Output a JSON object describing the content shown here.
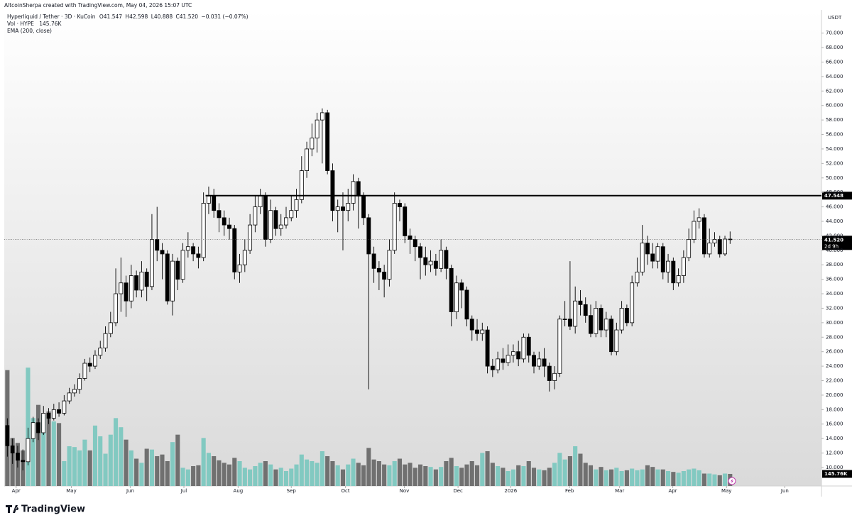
{
  "header": {
    "credit": "AltcoinSherpa created with TradingView.com, May 04, 2026 15:07 UTC"
  },
  "chart_data": {
    "type": "candlestick",
    "symbol": "Hyperliquid / Tether · 3D · KuCoin",
    "legend": {
      "o": "O",
      "h": "H",
      "l": "L",
      "c": "C",
      "change": "−0.031 (−0.07%)",
      "volume_title": "Vol · HYPE",
      "ema": "EMA (200, close)"
    },
    "currency": "USDT",
    "open": [
      15.8,
      13.0,
      12.0,
      11.0,
      10.8,
      14.0,
      16.2,
      14.8,
      17.5,
      16.8,
      18.0,
      17.5,
      19.2,
      20.3,
      20.8,
      22.3,
      24.4,
      24.0,
      25.5,
      26.5,
      28.5,
      30.0,
      34.0,
      35.5,
      33.0,
      36.5,
      34.5,
      37.0,
      35.0,
      41.5,
      40.0,
      39.5,
      33.0,
      38.5,
      36.0,
      40.0,
      40.5,
      39.5,
      39.0,
      46.5,
      47.5,
      45.5,
      44.5,
      43.5,
      43.0,
      37.0,
      38.0,
      40.0,
      43.5,
      46.0,
      47.5,
      41.5,
      45.5,
      43.0,
      43.5,
      44.5,
      45.5,
      47.0,
      51.0,
      54.0,
      55.5,
      58.0,
      59.0,
      51.0,
      45.5,
      46.0,
      45.5,
      46.5,
      49.5,
      47.5,
      44.5,
      39.5,
      37.5,
      37.0,
      36.0,
      40.0,
      46.5,
      46.0,
      42.0,
      41.5,
      40.5,
      39.0,
      38.0,
      38.5,
      37.5,
      40.0,
      37.5,
      31.5,
      35.5,
      34.5,
      30.5,
      29.0,
      28.5,
      29.0,
      24.0,
      23.5,
      25.0,
      24.5,
      25.5,
      26.0,
      25.0,
      28.0,
      25.5,
      24.0,
      25.0,
      24.0,
      22.0,
      23.0,
      30.5,
      30.5,
      29.5,
      33.0,
      32.5,
      31.0,
      28.5,
      32.0,
      29.0,
      30.5,
      26.0,
      29.0,
      32.0,
      30.0,
      35.5,
      37.0,
      41.0,
      39.5,
      38.5,
      40.5,
      37.0,
      38.5,
      35.5,
      36.5,
      39.0,
      41.5,
      44.0,
      44.5,
      39.5,
      41.0,
      41.5,
      39.5,
      41.547
    ],
    "high": [
      16.8,
      14.0,
      13.0,
      12.5,
      15.5,
      17.0,
      16.8,
      18.5,
      18.2,
      18.8,
      19.0,
      20.0,
      21.0,
      21.5,
      23.0,
      25.0,
      25.2,
      26.2,
      27.5,
      29.5,
      31.5,
      37.5,
      39.0,
      36.5,
      38.0,
      37.2,
      38.5,
      37.5,
      45.0,
      46.0,
      41.0,
      40.0,
      39.5,
      39.0,
      41.0,
      42.5,
      41.0,
      40.5,
      48.0,
      48.8,
      48.5,
      46.5,
      45.5,
      44.5,
      43.5,
      39.5,
      41.5,
      45.0,
      47.5,
      48.5,
      48.0,
      47.0,
      46.0,
      45.0,
      46.0,
      47.5,
      48.5,
      53.0,
      55.0,
      57.5,
      59.0,
      59.6,
      59.4,
      52.0,
      47.0,
      48.0,
      48.5,
      50.5,
      50.0,
      48.0,
      45.0,
      40.5,
      38.5,
      38.0,
      41.5,
      48.0,
      47.0,
      46.5,
      43.0,
      42.0,
      41.0,
      40.5,
      40.0,
      39.5,
      41.5,
      40.5,
      38.0,
      36.5,
      36.0,
      35.0,
      31.0,
      30.5,
      30.0,
      29.5,
      25.0,
      26.0,
      26.5,
      27.0,
      27.0,
      27.5,
      28.5,
      28.5,
      26.0,
      26.0,
      26.5,
      24.5,
      24.0,
      31.0,
      33.0,
      38.5,
      35.0,
      34.5,
      33.5,
      32.5,
      33.0,
      32.5,
      31.5,
      31.0,
      30.0,
      33.0,
      32.5,
      36.5,
      39.0,
      43.5,
      42.0,
      41.0,
      41.0,
      41.0,
      39.5,
      39.0,
      37.5,
      40.0,
      43.0,
      45.5,
      45.8,
      45.0,
      43.0,
      42.5,
      42.0,
      42.0,
      42.598
    ],
    "low": [
      11.5,
      10.5,
      10.0,
      9.6,
      10.3,
      13.5,
      13.8,
      14.5,
      16.0,
      16.5,
      17.0,
      17.2,
      18.8,
      19.8,
      20.2,
      22.0,
      23.2,
      23.6,
      25.0,
      26.0,
      28.0,
      29.5,
      31.5,
      30.8,
      32.0,
      33.5,
      33.5,
      33.0,
      34.5,
      38.5,
      36.0,
      32.5,
      31.0,
      34.5,
      35.5,
      39.0,
      38.5,
      37.5,
      38.5,
      45.0,
      44.5,
      42.5,
      42.0,
      41.5,
      36.0,
      35.5,
      37.0,
      39.5,
      42.5,
      45.0,
      40.5,
      41.0,
      42.0,
      42.0,
      43.0,
      44.0,
      44.5,
      46.5,
      50.0,
      53.0,
      53.5,
      52.0,
      50.5,
      44.0,
      42.5,
      40.0,
      44.0,
      45.5,
      43.0,
      43.5,
      20.8,
      35.5,
      34.5,
      33.5,
      35.0,
      39.5,
      44.0,
      41.0,
      39.5,
      38.5,
      36.0,
      36.5,
      37.0,
      36.5,
      37.0,
      36.0,
      29.5,
      30.5,
      32.0,
      29.5,
      27.5,
      27.5,
      27.5,
      23.0,
      22.5,
      23.0,
      23.5,
      24.0,
      24.5,
      24.0,
      24.5,
      24.5,
      23.0,
      23.5,
      22.5,
      20.5,
      20.8,
      22.5,
      29.5,
      29.0,
      28.5,
      31.0,
      30.0,
      28.0,
      28.0,
      28.0,
      28.0,
      25.5,
      25.5,
      28.5,
      29.5,
      29.5,
      35.0,
      36.5,
      38.0,
      37.5,
      37.5,
      36.0,
      35.5,
      34.5,
      35.0,
      35.5,
      38.5,
      41.0,
      43.0,
      39.0,
      39.0,
      40.5,
      39.0,
      39.2,
      40.888
    ],
    "close": [
      13.0,
      12.0,
      11.0,
      10.8,
      14.0,
      16.2,
      14.8,
      17.5,
      16.8,
      18.0,
      17.5,
      19.2,
      20.3,
      20.8,
      22.3,
      24.4,
      24.0,
      25.5,
      26.5,
      28.5,
      30.0,
      34.0,
      35.5,
      33.0,
      36.5,
      34.5,
      37.0,
      35.0,
      41.5,
      40.0,
      39.5,
      33.0,
      38.5,
      36.0,
      40.0,
      40.5,
      39.5,
      39.0,
      46.5,
      47.5,
      45.5,
      44.5,
      43.5,
      43.0,
      37.0,
      38.0,
      40.0,
      43.5,
      46.0,
      47.5,
      41.5,
      45.5,
      43.0,
      43.5,
      44.5,
      45.5,
      47.0,
      51.0,
      54.0,
      55.5,
      58.0,
      59.0,
      51.0,
      45.5,
      46.0,
      45.5,
      46.5,
      49.5,
      47.5,
      44.5,
      39.5,
      37.5,
      37.0,
      36.0,
      40.0,
      46.5,
      46.0,
      42.0,
      41.5,
      40.5,
      39.0,
      38.0,
      38.5,
      37.5,
      40.0,
      37.5,
      31.5,
      35.5,
      34.5,
      30.5,
      29.0,
      28.5,
      29.0,
      24.0,
      23.5,
      25.0,
      24.5,
      25.5,
      26.0,
      25.0,
      28.0,
      25.5,
      24.0,
      25.0,
      24.0,
      22.0,
      23.0,
      30.5,
      30.5,
      29.5,
      33.0,
      32.5,
      31.0,
      28.5,
      32.0,
      29.0,
      30.5,
      26.0,
      29.0,
      32.0,
      30.0,
      35.5,
      37.0,
      41.0,
      39.5,
      38.5,
      40.5,
      37.0,
      38.5,
      35.5,
      36.5,
      39.0,
      41.5,
      44.0,
      44.5,
      39.5,
      41.0,
      41.5,
      39.5,
      41.547,
      41.52
    ],
    "up_color": "#ffffff",
    "down_color": "#000000",
    "border_color": "#000000",
    "volume": {
      "values": [
        1400000,
        580000,
        520000,
        430000,
        1430000,
        820000,
        980000,
        860000,
        900000,
        780000,
        760000,
        300000,
        480000,
        470000,
        430000,
        560000,
        430000,
        730000,
        600000,
        390000,
        620000,
        820000,
        710000,
        560000,
        430000,
        330000,
        280000,
        450000,
        440000,
        360000,
        380000,
        300000,
        530000,
        620000,
        220000,
        200000,
        240000,
        250000,
        580000,
        400000,
        360000,
        310000,
        280000,
        260000,
        340000,
        300000,
        220000,
        200000,
        240000,
        280000,
        300000,
        260000,
        200000,
        220000,
        180000,
        210000,
        260000,
        380000,
        320000,
        300000,
        280000,
        420000,
        360000,
        300000,
        250000,
        200000,
        260000,
        330000,
        280000,
        250000,
        460000,
        320000,
        300000,
        260000,
        250000,
        300000,
        330000,
        260000,
        280000,
        220000,
        260000,
        240000,
        230000,
        200000,
        230000,
        300000,
        340000,
        240000,
        220000,
        260000,
        300000,
        250000,
        400000,
        420000,
        280000,
        240000,
        220000,
        180000,
        200000,
        250000,
        240000,
        300000,
        220000,
        200000,
        190000,
        220000,
        280000,
        400000,
        320000,
        360000,
        480000,
        390000,
        280000,
        250000,
        200000,
        230000,
        190000,
        200000,
        220000,
        180000,
        190000,
        210000,
        190000,
        200000,
        250000,
        230000,
        200000,
        200000,
        180000,
        170000,
        160000,
        180000,
        200000,
        210000,
        190000,
        150000,
        150000,
        140000,
        130000,
        150000,
        145760
      ],
      "value_label": "145.76K",
      "ylim": [
        0,
        1500000
      ],
      "up_color": "#82c9c1",
      "down_color": "#707070"
    },
    "xlim": [
      -0.6,
      157.7
    ],
    "xticks": [
      {
        "value": 1.7,
        "label": "Apr"
      },
      {
        "value": 12.4,
        "label": "May"
      },
      {
        "value": 23.8,
        "label": "Jun"
      },
      {
        "value": 34.2,
        "label": "Jul"
      },
      {
        "value": 44.7,
        "label": "Aug"
      },
      {
        "value": 55.0,
        "label": "Sep"
      },
      {
        "value": 65.5,
        "label": "Oct"
      },
      {
        "value": 76.9,
        "label": "Nov"
      },
      {
        "value": 87.3,
        "label": "Dec"
      },
      {
        "value": 97.5,
        "label": "2026"
      },
      {
        "value": 108.9,
        "label": "Feb"
      },
      {
        "value": 118.6,
        "label": "Mar"
      },
      {
        "value": 128.9,
        "label": "Apr"
      },
      {
        "value": 139.3,
        "label": "May"
      },
      {
        "value": 150.6,
        "label": "Jun"
      }
    ],
    "ylim": [
      7.45,
      73.2
    ],
    "yticks": [
      {
        "value": 10,
        "label": "10.000"
      },
      {
        "value": 12,
        "label": "12.000"
      },
      {
        "value": 14,
        "label": "14.000"
      },
      {
        "value": 16,
        "label": "16.000"
      },
      {
        "value": 18,
        "label": "18.000"
      },
      {
        "value": 20,
        "label": "20.000"
      },
      {
        "value": 22,
        "label": "22.000"
      },
      {
        "value": 24,
        "label": "24.000"
      },
      {
        "value": 26,
        "label": "26.000"
      },
      {
        "value": 28,
        "label": "28.000"
      },
      {
        "value": 30,
        "label": "30.000"
      },
      {
        "value": 32,
        "label": "32.000"
      },
      {
        "value": 34,
        "label": "34.000"
      },
      {
        "value": 36,
        "label": "36.000"
      },
      {
        "value": 38,
        "label": "38.000"
      },
      {
        "value": 40,
        "label": "40.000"
      },
      {
        "value": 42,
        "label": "42.000"
      },
      {
        "value": 44,
        "label": "44.000"
      },
      {
        "value": 46,
        "label": "46.000"
      },
      {
        "value": 48,
        "label": "48.000"
      },
      {
        "value": 50,
        "label": "50.000"
      },
      {
        "value": 52,
        "label": "52.000"
      },
      {
        "value": 54,
        "label": "54.000"
      },
      {
        "value": 56,
        "label": "56.000"
      },
      {
        "value": 58,
        "label": "58.000"
      },
      {
        "value": 60,
        "label": "60.000"
      },
      {
        "value": 62,
        "label": "62.000"
      },
      {
        "value": 64,
        "label": "64.000"
      },
      {
        "value": 66,
        "label": "66.000"
      },
      {
        "value": 68,
        "label": "68.000"
      },
      {
        "value": 70,
        "label": "70.000"
      }
    ],
    "hline": {
      "value": 47.548,
      "start": 38.4
    },
    "last_price": {
      "value": 41.52,
      "label": "41.520"
    },
    "countdown": "2d 9h"
  },
  "footer": {
    "brand": "TradingView"
  }
}
